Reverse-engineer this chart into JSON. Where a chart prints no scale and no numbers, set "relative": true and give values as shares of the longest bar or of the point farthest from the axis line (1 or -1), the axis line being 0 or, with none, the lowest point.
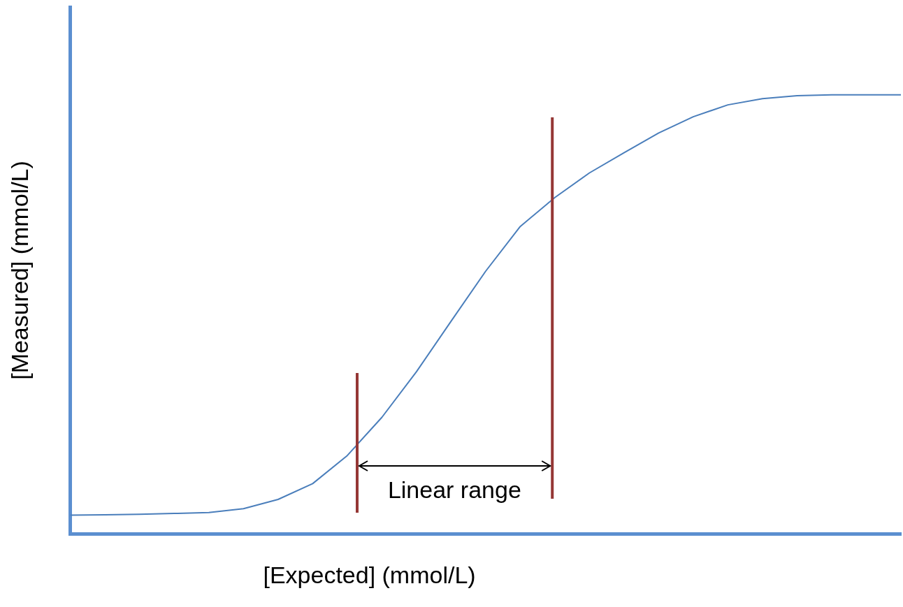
{
  "chart_data": {
    "type": "line",
    "relative": true,
    "xlabel": "[Expected] (mmol/L)",
    "ylabel": "[Measured] (mmol/L)",
    "marker": "none",
    "categories": [
      null,
      null,
      null,
      null,
      null,
      null,
      null,
      null,
      null,
      null,
      null,
      null,
      null,
      null,
      null,
      null,
      null,
      null,
      null,
      null,
      null,
      null,
      null,
      null,
      null
    ],
    "series": [
      {
        "color": "#4a7ebb",
        "values": [
          0.042,
          0.043,
          0.044,
          0.046,
          0.048,
          0.057,
          0.078,
          0.114,
          0.178,
          0.265,
          0.369,
          0.484,
          0.598,
          0.7,
          0.766,
          0.822,
          0.868,
          0.913,
          0.95,
          0.977,
          0.991,
          0.998,
          1,
          1,
          1
        ]
      }
    ],
    "annotations": [
      "Linear range"
    ]
  }
}
